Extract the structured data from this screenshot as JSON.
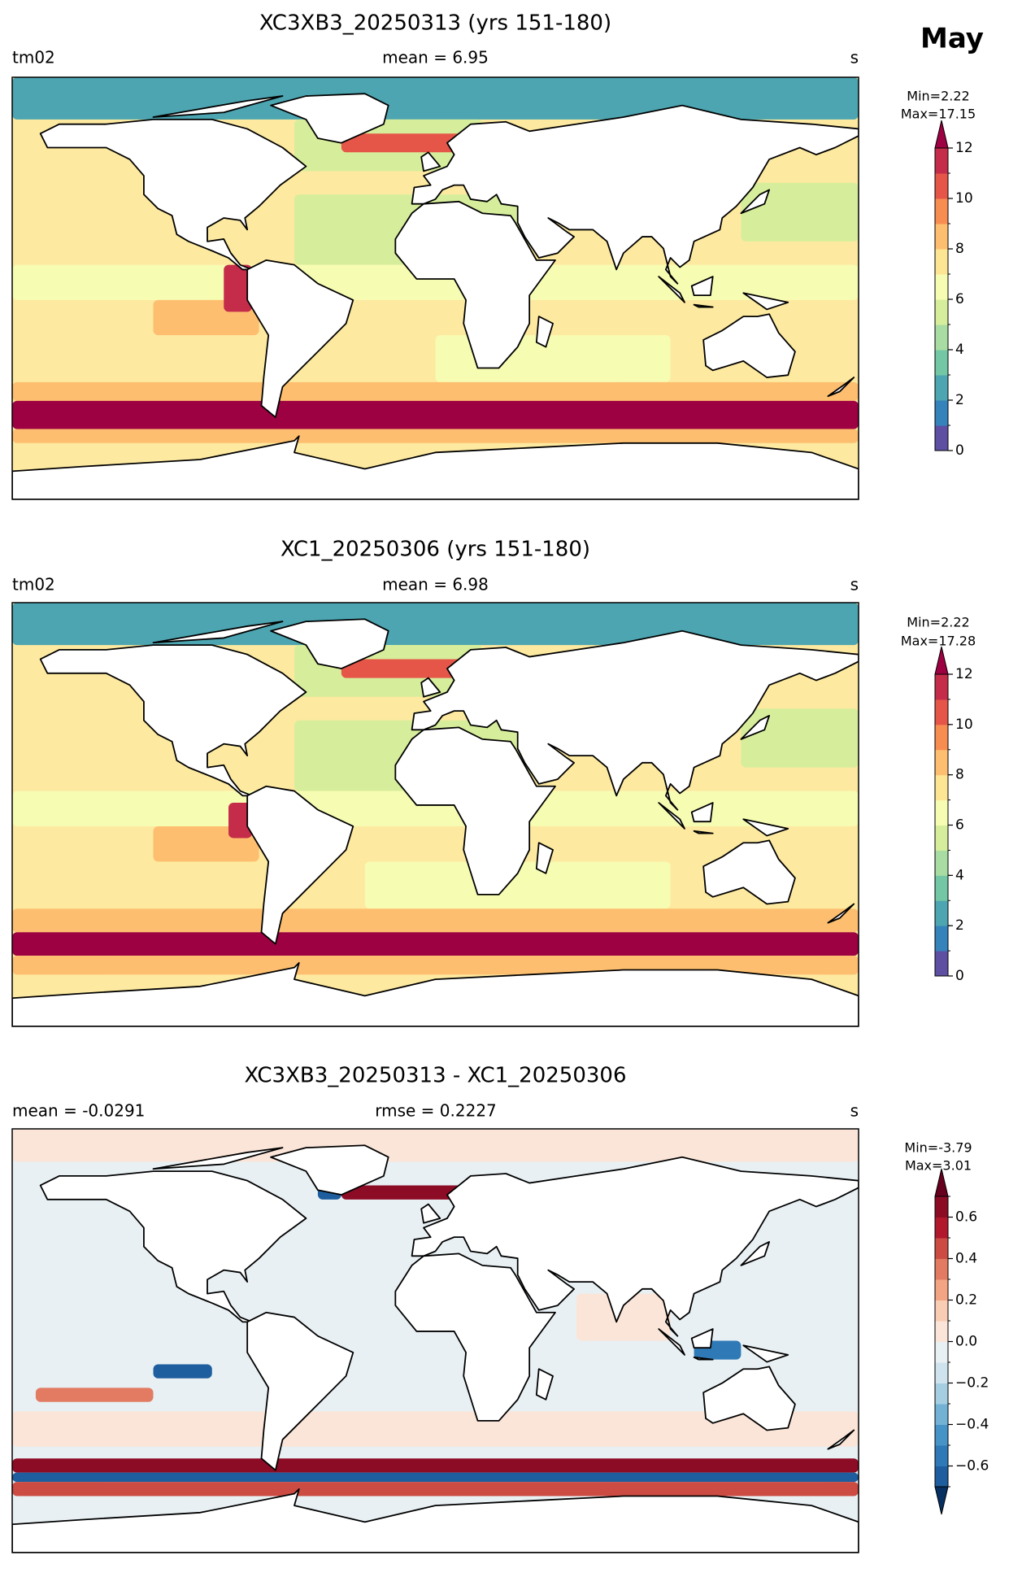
{
  "month": "May",
  "panels": [
    {
      "title": "XC3XB3_20250313 (yrs 151-180)",
      "left_label": "tm02",
      "center_label": "mean = 6.95",
      "right_label": "s",
      "min_label": "Min=2.22",
      "max_label": "Max=17.15",
      "colorbar": {
        "lim": [
          0,
          12
        ],
        "ticks": [
          0,
          2,
          4,
          6,
          8,
          10,
          12
        ],
        "extend": "max",
        "over_color": "#9e0142",
        "colors": [
          "#5e4fa2",
          "#3682ba",
          "#4ca5b1",
          "#74c7a5",
          "#a8dca2",
          "#d6ee9b",
          "#f7fcb3",
          "#fee593",
          "#fdbf6f",
          "#f88d52",
          "#e55649",
          "#c42c4a"
        ]
      }
    },
    {
      "title": "XC1_20250306 (yrs 151-180)",
      "left_label": "tm02",
      "center_label": "mean = 6.98",
      "right_label": "s",
      "min_label": "Min=2.22",
      "max_label": "Max=17.28",
      "colorbar": {
        "lim": [
          0,
          12
        ],
        "ticks": [
          0,
          2,
          4,
          6,
          8,
          10,
          12
        ],
        "extend": "max",
        "over_color": "#9e0142",
        "colors": [
          "#5e4fa2",
          "#3682ba",
          "#4ca5b1",
          "#74c7a5",
          "#a8dca2",
          "#d6ee9b",
          "#f7fcb3",
          "#fee593",
          "#fdbf6f",
          "#f88d52",
          "#e55649",
          "#c42c4a"
        ]
      }
    },
    {
      "title": "XC3XB3_20250313 - XC1_20250306",
      "left_label": "mean = -0.0291",
      "center_label": "rmse = 0.2227",
      "right_label": "s",
      "min_label": "Min=-3.79",
      "max_label": "Max=3.01",
      "colorbar": {
        "lim": [
          -0.7,
          0.7
        ],
        "ticks": [
          {
            "value": -0.6,
            "label": "−0.6"
          },
          {
            "value": -0.4,
            "label": "−0.4"
          },
          {
            "value": -0.2,
            "label": "−0.2"
          },
          {
            "value": 0,
            "label": "0.0"
          },
          0.2,
          0.4,
          0.6
        ],
        "extend": "both",
        "under_color": "#053061",
        "over_color": "#67001f",
        "colors": [
          "#1f5e9e",
          "#2f7ab6",
          "#4694c7",
          "#74b2d5",
          "#a6cee3",
          "#cfe3ee",
          "#e8f0f4",
          "#fbe5d8",
          "#f9ccb4",
          "#f3a483",
          "#e27b62",
          "#cc4c44",
          "#b1182b",
          "#8c0c25"
        ]
      }
    }
  ]
}
